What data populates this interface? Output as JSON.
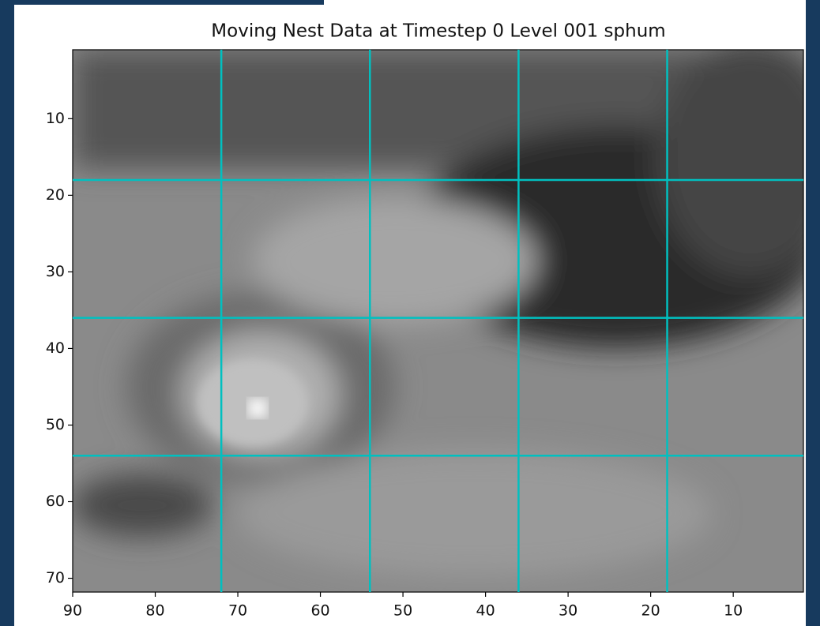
{
  "chart_data": {
    "type": "image",
    "title": "Moving Nest Data at Timestep   0 Level 001 sphum",
    "xlim": [
      90,
      1.5
    ],
    "ylim": [
      1,
      71.8
    ],
    "xticks": [
      90,
      80,
      70,
      60,
      50,
      40,
      30,
      20,
      10
    ],
    "yticks": [
      10,
      20,
      30,
      40,
      50,
      60,
      70
    ],
    "grid_x": [
      72,
      54,
      36,
      18
    ],
    "grid_y": [
      18,
      36,
      54
    ],
    "grid_color": "#00c0c0"
  }
}
